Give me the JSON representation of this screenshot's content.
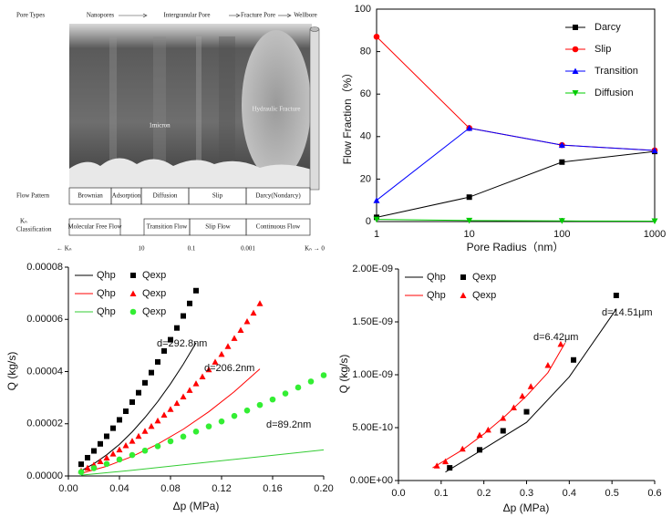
{
  "diagram": {
    "pore_types": {
      "label": "Pore Types",
      "stages": [
        "Nanopores",
        "Intergranular Pore",
        "Fracture Pore",
        "Wellbore"
      ]
    },
    "image_labels": [
      "1micron",
      "Hydraulic Fracture"
    ],
    "flow_pattern": {
      "label": "Flow Pattern",
      "cells": [
        "Brownian",
        "Adsorption",
        "Diffusion",
        "Slip",
        "Darcy(Nondarcy)"
      ]
    },
    "kn_classification": {
      "symbol": "Kₙ",
      "label": "Classification",
      "cells": [
        "Molecular Free Flow",
        "Transition Flow",
        "Slip Flow",
        "Continuous Flow"
      ]
    },
    "kn_scale": [
      "← Kₙ",
      "10",
      "0.1",
      "0.001",
      "Kₙ → 0"
    ]
  },
  "chart_data": [
    {
      "type": "line",
      "xlabel": "Pore Radius（nm）",
      "ylabel": "Flow Fraction（%）",
      "xscale": "log",
      "x": [
        1,
        10,
        100,
        1000
      ],
      "xlim": [
        1,
        1000
      ],
      "xticks": [
        1,
        10,
        100,
        1000
      ],
      "ylim": [
        0,
        100
      ],
      "yticks": [
        0,
        20,
        40,
        60,
        80,
        100
      ],
      "legend": "upper right",
      "series": [
        {
          "name": "Darcy",
          "color": "#000000",
          "marker": "square",
          "line": true,
          "values": [
            2,
            11.5,
            28,
            33
          ]
        },
        {
          "name": "Slip",
          "color": "#ff0000",
          "marker": "circle",
          "line": true,
          "values": [
            87,
            44,
            36,
            33.5
          ]
        },
        {
          "name": "Transition",
          "color": "#0000ff",
          "marker": "triangle-up",
          "line": true,
          "values": [
            10,
            44,
            36,
            33.5
          ]
        },
        {
          "name": "Diffusion",
          "color": "#00cc00",
          "marker": "triangle-down",
          "line": true,
          "values": [
            1,
            0.5,
            0.3,
            0.2
          ]
        }
      ]
    },
    {
      "type": "scatter",
      "xlabel": "Δp (MPa)",
      "ylabel": "Q (kg/s)",
      "xlim": [
        0,
        0.2
      ],
      "xticks": [
        {
          "value": 0,
          "label": "0.00"
        },
        {
          "value": 0.04,
          "label": "0.04"
        },
        {
          "value": 0.08,
          "label": "0.08"
        },
        {
          "value": 0.12,
          "label": "0.12"
        },
        {
          "value": 0.16,
          "label": "0.16"
        },
        {
          "value": 0.2,
          "label": "0.20"
        }
      ],
      "ylim": [
        0,
        8e-05
      ],
      "yticks": [
        {
          "value": 0,
          "label": "0.00000"
        },
        {
          "value": 2e-05,
          "label": "0.00002"
        },
        {
          "value": 4e-05,
          "label": "0.00004"
        },
        {
          "value": 6e-05,
          "label": "0.00006"
        },
        {
          "value": 8e-05,
          "label": "0.00008"
        }
      ],
      "legend": "upper left",
      "annotations": [
        "d=292.8nm",
        "d=206.2nm",
        "d=89.2nm"
      ],
      "series": [
        {
          "name": "Qhp",
          "color": "#000000",
          "line": true,
          "x": [
            0.01,
            0.02,
            0.03,
            0.04,
            0.05,
            0.06,
            0.07,
            0.08,
            0.09,
            0.1
          ],
          "values": [
            2e-06,
            4.7e-06,
            8.1e-06,
            1.21e-05,
            1.69e-05,
            2.24e-05,
            2.85e-05,
            3.53e-05,
            4.28e-05,
            5.1e-05
          ]
        },
        {
          "name": "Qexp",
          "color": "#000000",
          "marker": "square",
          "x": [
            0.01,
            0.015,
            0.02,
            0.025,
            0.03,
            0.035,
            0.04,
            0.045,
            0.05,
            0.055,
            0.06,
            0.065,
            0.07,
            0.075,
            0.08,
            0.085,
            0.09,
            0.095,
            0.1
          ],
          "values": [
            4.5e-06,
            7e-06,
            9.6e-06,
            1.23e-05,
            1.52e-05,
            1.83e-05,
            2.15e-05,
            2.48e-05,
            2.83e-05,
            3.19e-05,
            3.57e-05,
            3.96e-05,
            4.37e-05,
            4.79e-05,
            5.22e-05,
            5.67e-05,
            6.13e-05,
            6.61e-05,
            7.1e-05
          ]
        },
        {
          "name": "Qhp",
          "color": "#ff0000",
          "line": true,
          "x": [
            0.01,
            0.03,
            0.05,
            0.07,
            0.09,
            0.11,
            0.13,
            0.15
          ],
          "values": [
            1e-06,
            3.7e-06,
            7.5e-06,
            1.22e-05,
            1.79e-05,
            2.46e-05,
            3.23e-05,
            4.1e-05
          ]
        },
        {
          "name": "Qexp",
          "color": "#ff0000",
          "marker": "triangle-up",
          "x": [
            0.01,
            0.015,
            0.02,
            0.025,
            0.03,
            0.035,
            0.04,
            0.045,
            0.05,
            0.055,
            0.06,
            0.065,
            0.07,
            0.075,
            0.08,
            0.085,
            0.09,
            0.095,
            0.1,
            0.105,
            0.11,
            0.115,
            0.12,
            0.125,
            0.13,
            0.135,
            0.14,
            0.145,
            0.15
          ],
          "values": [
            2e-06,
            3.1e-06,
            4.3e-06,
            5.6e-06,
            7e-06,
            8.5e-06,
            1.01e-05,
            1.17e-05,
            1.34e-05,
            1.53e-05,
            1.72e-05,
            1.91e-05,
            2.12e-05,
            2.34e-05,
            2.56e-05,
            2.79e-05,
            3.04e-05,
            3.29e-05,
            3.54e-05,
            3.81e-05,
            4.08e-05,
            4.37e-05,
            4.67e-05,
            4.97e-05,
            5.28e-05,
            5.59e-05,
            5.92e-05,
            6.25e-05,
            6.61e-05
          ]
        },
        {
          "name": "Qhp",
          "color": "#33cc33",
          "line": true,
          "x": [
            0.01,
            0.05,
            0.1,
            0.15,
            0.2
          ],
          "values": [
            3e-07,
            2.2e-06,
            4.8e-06,
            7.4e-06,
            1e-05
          ]
        },
        {
          "name": "Qexp",
          "color": "#33ee33",
          "marker": "circle",
          "x": [
            0.01,
            0.02,
            0.03,
            0.04,
            0.05,
            0.06,
            0.07,
            0.08,
            0.09,
            0.1,
            0.11,
            0.12,
            0.13,
            0.14,
            0.15,
            0.16,
            0.17,
            0.18,
            0.19,
            0.2
          ],
          "values": [
            1.5e-06,
            3e-06,
            4.6e-06,
            6.3e-06,
            8e-06,
            9.7e-06,
            1.14e-05,
            1.33e-05,
            1.51e-05,
            1.7e-05,
            1.9e-05,
            2.09e-05,
            2.3e-05,
            2.51e-05,
            2.72e-05,
            2.93e-05,
            3.16e-05,
            3.39e-05,
            3.62e-05,
            3.86e-05
          ]
        }
      ]
    },
    {
      "type": "scatter",
      "xlabel": "Δp (MPa)",
      "ylabel": "Q (kg/s)",
      "xlim": [
        0,
        0.6
      ],
      "xticks": [
        {
          "value": 0,
          "label": "0.0"
        },
        0.1,
        0.2,
        0.3,
        0.4,
        0.5,
        0.6
      ],
      "ylim": [
        0,
        2e-09
      ],
      "yticks": [
        {
          "value": 0,
          "label": "0.00E+00"
        },
        {
          "value": 5e-10,
          "label": "5.00E-10"
        },
        {
          "value": 1e-09,
          "label": "1.00E-09"
        },
        {
          "value": 1.5e-09,
          "label": "1.50E-09"
        },
        {
          "value": 2e-09,
          "label": "2.00E-09"
        }
      ],
      "legend": "upper left",
      "annotations": [
        "d=14.51μm",
        "d=6.42μm"
      ],
      "series": [
        {
          "name": "Qhp",
          "color": "#000000",
          "line": true,
          "x": [
            0.11,
            0.2,
            0.3,
            0.4,
            0.51
          ],
          "values": [
            8e-11,
            3e-10,
            5.5e-10,
            9.8e-10,
            1.62e-09
          ]
        },
        {
          "name": "Qexp",
          "color": "#000000",
          "marker": "square",
          "x": [
            0.12,
            0.19,
            0.245,
            0.3,
            0.41,
            0.51
          ],
          "values": [
            1.2e-10,
            2.9e-10,
            4.7e-10,
            6.5e-10,
            1.14e-09,
            1.75e-09
          ]
        },
        {
          "name": "Qhp",
          "color": "#ff0000",
          "line": true,
          "x": [
            0.08,
            0.15,
            0.2,
            0.25,
            0.3,
            0.35,
            0.39
          ],
          "values": [
            1.2e-10,
            2.9e-10,
            4.4e-10,
            6.1e-10,
            8e-10,
            1.02e-09,
            1.3e-09
          ]
        },
        {
          "name": "Qexp",
          "color": "#ff0000",
          "marker": "triangle-up",
          "x": [
            0.09,
            0.11,
            0.15,
            0.19,
            0.21,
            0.245,
            0.27,
            0.29,
            0.31,
            0.35,
            0.38
          ],
          "values": [
            1.4e-10,
            1.8e-10,
            3e-10,
            4.3e-10,
            4.8e-10,
            5.9e-10,
            6.9e-10,
            8e-10,
            8.9e-10,
            1.09e-09,
            1.29e-09
          ]
        }
      ]
    }
  ]
}
